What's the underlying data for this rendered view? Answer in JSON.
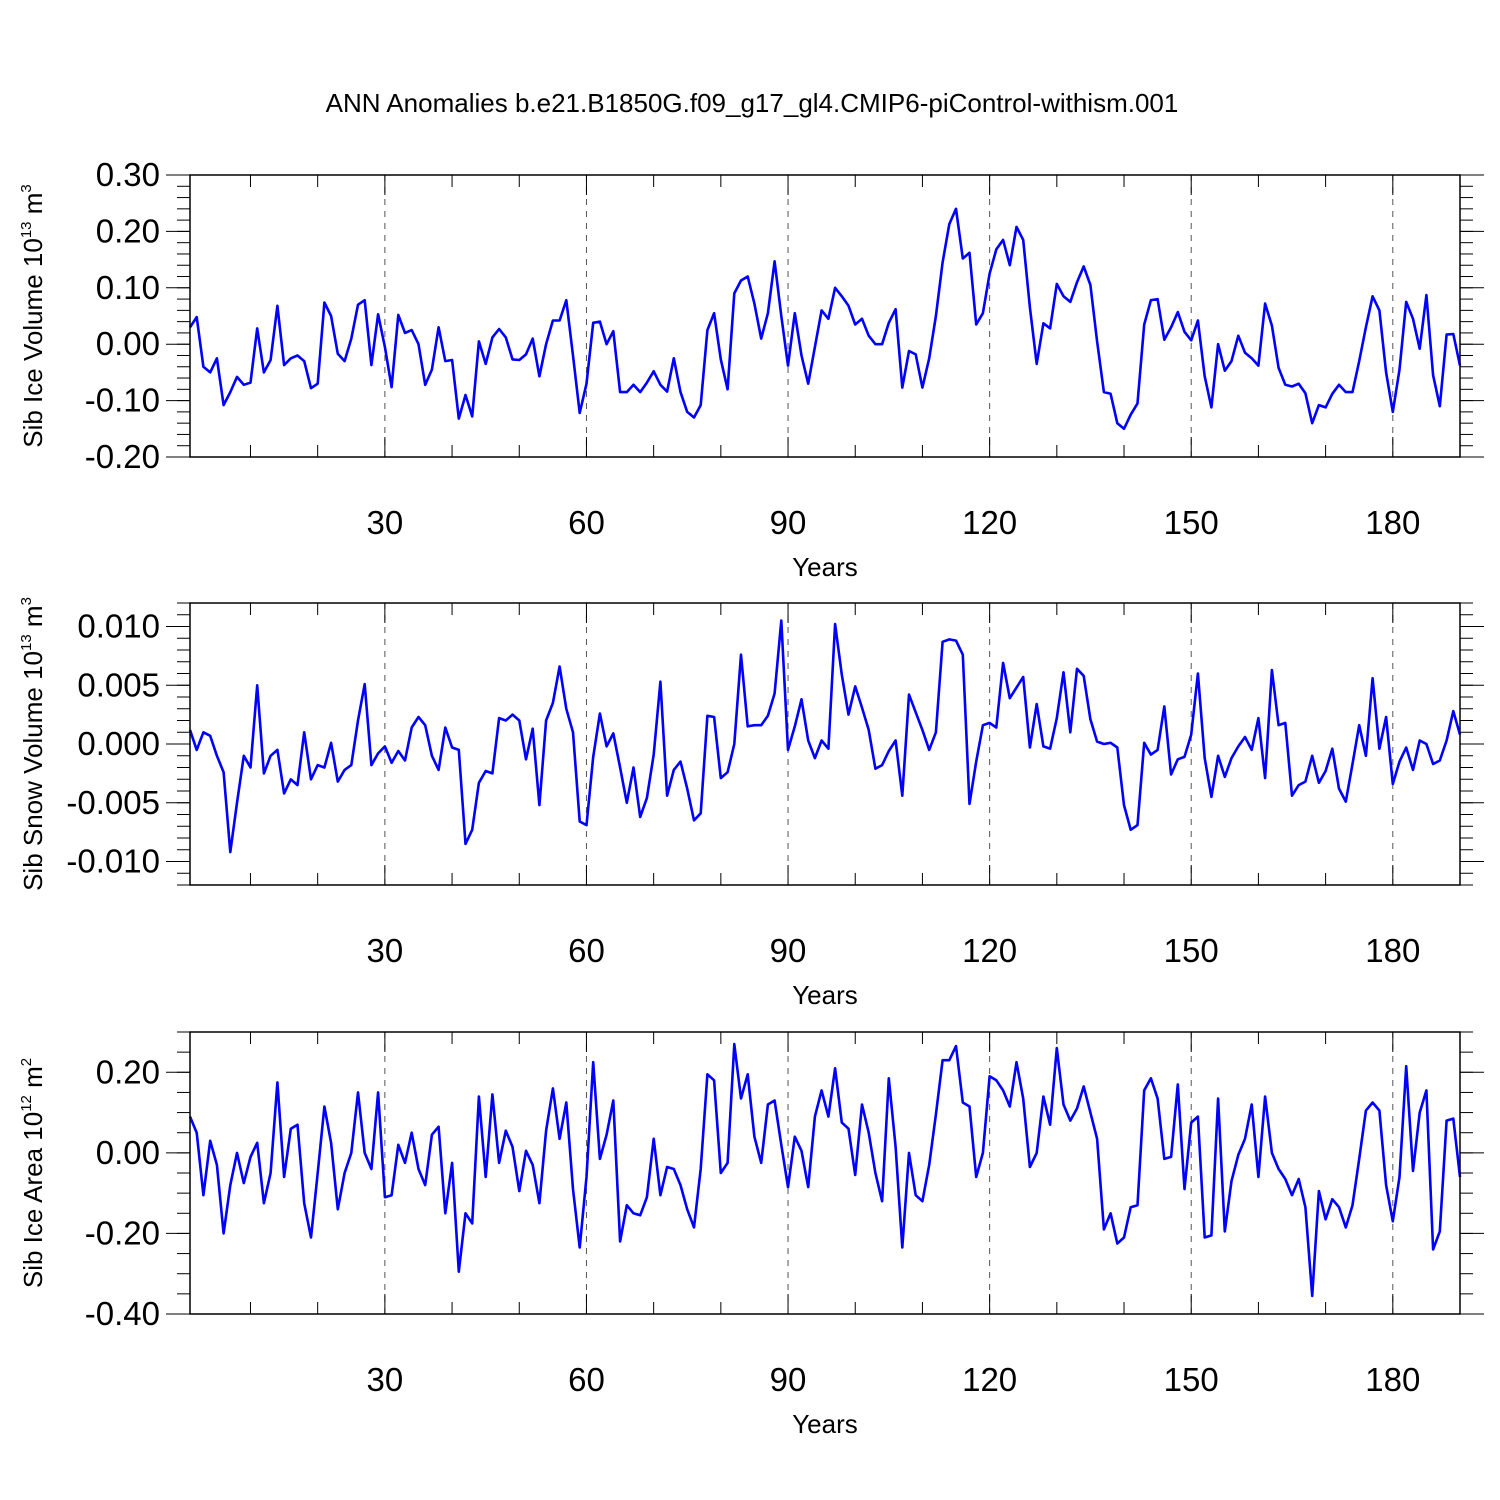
{
  "title": "ANN Anomalies b.e21.B1850G.f09_g17_gl4.CMIP6-piControl-withism.001",
  "chart_data": [
    {
      "type": "line",
      "title": "",
      "xlabel": "Years",
      "ylabel_main": "Sib Ice Volume 10",
      "ylabel_exp": "13",
      "ylabel_unit": " m",
      "ylabel_unit_exp": "3",
      "xlim": [
        1,
        190
      ],
      "ylim": [
        -0.2,
        0.3
      ],
      "xticks": [
        30,
        60,
        90,
        120,
        150,
        180
      ],
      "xtick_labels": [
        "30",
        "60",
        "90",
        "120",
        "150",
        "180"
      ],
      "yticks": [
        -0.2,
        -0.1,
        0.0,
        0.1,
        0.2,
        0.3
      ],
      "ytick_labels": [
        "-0.20",
        "-0.10",
        "0.00",
        "0.10",
        "0.20",
        "0.30"
      ],
      "yminor_step": 0.02,
      "grid": "vertical dashed at major x ticks",
      "series": [
        {
          "name": "Sib Ice Volume",
          "color": "#0000ff",
          "x_start": 1,
          "values": [
            0.03,
            0.048,
            -0.04,
            -0.05,
            -0.025,
            -0.108,
            -0.085,
            -0.058,
            -0.072,
            -0.068,
            0.028,
            -0.05,
            -0.028,
            0.068,
            -0.037,
            -0.025,
            -0.02,
            -0.03,
            -0.078,
            -0.07,
            0.074,
            0.05,
            -0.017,
            -0.03,
            0.01,
            0.07,
            0.078,
            -0.037,
            0.053,
            -0.005,
            -0.076,
            0.052,
            0.02,
            0.025,
            0.0,
            -0.072,
            -0.045,
            0.03,
            -0.03,
            -0.028,
            -0.132,
            -0.09,
            -0.128,
            0.005,
            -0.035,
            0.012,
            0.027,
            0.012,
            -0.027,
            -0.028,
            -0.018,
            0.01,
            -0.057,
            0.0,
            0.042,
            0.042,
            0.078,
            -0.02,
            -0.122,
            -0.07,
            0.038,
            0.04,
            0.0,
            0.023,
            -0.085,
            -0.085,
            -0.072,
            -0.085,
            -0.068,
            -0.048,
            -0.072,
            -0.084,
            -0.025,
            -0.085,
            -0.12,
            -0.13,
            -0.108,
            0.025,
            0.055,
            -0.027,
            -0.08,
            0.09,
            0.113,
            0.12,
            0.072,
            0.01,
            0.055,
            0.147,
            0.05,
            -0.038,
            0.055,
            -0.02,
            -0.07,
            -0.005,
            0.06,
            0.045,
            0.1,
            0.085,
            0.068,
            0.035,
            0.045,
            0.015,
            0.0,
            0.0,
            0.038,
            0.062,
            -0.077,
            -0.012,
            -0.018,
            -0.077,
            -0.025,
            0.05,
            0.145,
            0.213,
            0.24,
            0.152,
            0.162,
            0.035,
            0.055,
            0.125,
            0.168,
            0.185,
            0.14,
            0.208,
            0.185,
            0.065,
            -0.035,
            0.037,
            0.028,
            0.107,
            0.085,
            0.075,
            0.11,
            0.138,
            0.105,
            0.005,
            -0.085,
            -0.088,
            -0.14,
            -0.15,
            -0.125,
            -0.105,
            0.035,
            0.078,
            0.08,
            0.008,
            0.03,
            0.057,
            0.022,
            0.007,
            0.042,
            -0.057,
            -0.112,
            0.0,
            -0.047,
            -0.03,
            0.015,
            -0.015,
            -0.025,
            -0.038,
            0.072,
            0.033,
            -0.042,
            -0.072,
            -0.075,
            -0.07,
            -0.087,
            -0.14,
            -0.108,
            -0.112,
            -0.088,
            -0.072,
            -0.085,
            -0.085,
            -0.03,
            0.03,
            0.085,
            0.06,
            -0.05,
            -0.12,
            -0.045,
            0.075,
            0.045,
            -0.008,
            0.087,
            -0.055,
            -0.11,
            0.017,
            0.018,
            -0.038
          ]
        }
      ]
    },
    {
      "type": "line",
      "title": "",
      "xlabel": "Years",
      "ylabel_main": "Sib Snow Volume 10",
      "ylabel_exp": "13",
      "ylabel_unit": " m",
      "ylabel_unit_exp": "3",
      "xlim": [
        1,
        190
      ],
      "ylim": [
        -0.012,
        0.012
      ],
      "xticks": [
        30,
        60,
        90,
        120,
        150,
        180
      ],
      "xtick_labels": [
        "30",
        "60",
        "90",
        "120",
        "150",
        "180"
      ],
      "yticks": [
        -0.01,
        -0.005,
        0.0,
        0.005,
        0.01
      ],
      "ytick_labels": [
        "-0.010",
        "-0.005",
        "0.000",
        "0.005",
        "0.010"
      ],
      "yminor_step": 0.001,
      "grid": "vertical dashed at major x ticks",
      "series": [
        {
          "name": "Sib Snow Volume",
          "color": "#0000ff",
          "x_start": 1,
          "values": [
            0.0012,
            -0.0005,
            0.001,
            0.0007,
            -0.001,
            -0.0024,
            -0.0092,
            -0.005,
            -0.001,
            -0.002,
            0.005,
            -0.0025,
            -0.001,
            -0.0005,
            -0.0042,
            -0.003,
            -0.0035,
            0.001,
            -0.003,
            -0.0018,
            -0.002,
            0.0001,
            -0.0032,
            -0.0022,
            -0.0018,
            0.002,
            0.0051,
            -0.0018,
            -0.0008,
            -0.0002,
            -0.0016,
            -0.0006,
            -0.0014,
            0.0014,
            0.0023,
            0.0016,
            -0.001,
            -0.0022,
            0.0014,
            -0.0003,
            -0.0005,
            -0.0085,
            -0.0073,
            -0.0033,
            -0.0023,
            -0.0025,
            0.0022,
            0.002,
            0.0025,
            0.002,
            -0.0013,
            0.0013,
            -0.0052,
            0.002,
            0.0035,
            0.0066,
            0.003,
            0.001,
            -0.0066,
            -0.0069,
            -0.0011,
            0.0026,
            -0.0002,
            0.0009,
            -0.002,
            -0.005,
            -0.002,
            -0.0062,
            -0.0046,
            -0.0009,
            0.0053,
            -0.0044,
            -0.0022,
            -0.0015,
            -0.0038,
            -0.0065,
            -0.0059,
            0.0024,
            0.0023,
            -0.0029,
            -0.0024,
            0.0,
            0.0076,
            0.0015,
            0.0016,
            0.0016,
            0.0024,
            0.0043,
            0.0105,
            -0.0005,
            0.0015,
            0.0038,
            0.0003,
            -0.0012,
            0.0003,
            -0.0004,
            0.0102,
            0.0059,
            0.0025,
            0.0049,
            0.0031,
            0.0012,
            -0.0021,
            -0.0018,
            -0.0006,
            0.0003,
            -0.0044,
            0.0042,
            0.0027,
            0.0012,
            -0.0005,
            0.001,
            0.0087,
            0.0089,
            0.0088,
            0.0076,
            -0.0051,
            -0.0015,
            0.0016,
            0.0018,
            0.0014,
            0.0069,
            0.0039,
            0.0048,
            0.0057,
            -0.0003,
            0.0034,
            -0.0002,
            -0.0004,
            0.0022,
            0.0061,
            0.001,
            0.0064,
            0.0058,
            0.0021,
            0.0002,
            0.0,
            0.0001,
            -0.0003,
            -0.0052,
            -0.0073,
            -0.0069,
            0.0001,
            -0.0009,
            -0.0005,
            0.0032,
            -0.0026,
            -0.0013,
            -0.0011,
            0.0008,
            0.006,
            -0.0012,
            -0.0045,
            -0.001,
            -0.0028,
            -0.0012,
            -0.0002,
            0.0006,
            -0.0005,
            0.0022,
            -0.0029,
            0.0063,
            0.0016,
            0.0018,
            -0.0044,
            -0.0035,
            -0.0032,
            -0.001,
            -0.0033,
            -0.0023,
            -0.0004,
            -0.0038,
            -0.0049,
            -0.0017,
            0.0016,
            -0.001,
            0.0056,
            -0.0004,
            0.0023,
            -0.0034,
            -0.0015,
            -0.0003,
            -0.0022,
            0.0003,
            0.0,
            -0.0017,
            -0.0014,
            0.0003,
            0.0028,
            0.0008
          ]
        }
      ]
    },
    {
      "type": "line",
      "title": "",
      "xlabel": "Years",
      "ylabel_main": "Sib Ice Area 10",
      "ylabel_exp": "12",
      "ylabel_unit": " m",
      "ylabel_unit_exp": "2",
      "xlim": [
        1,
        190
      ],
      "ylim": [
        -0.4,
        0.3
      ],
      "xticks": [
        30,
        60,
        90,
        120,
        150,
        180
      ],
      "xtick_labels": [
        "30",
        "60",
        "90",
        "120",
        "150",
        "180"
      ],
      "yticks": [
        -0.4,
        -0.2,
        0.0,
        0.2
      ],
      "ytick_labels": [
        "-0.40",
        "-0.20",
        "0.00",
        "0.20"
      ],
      "yminor_step": 0.05,
      "grid": "vertical dashed at major x ticks",
      "series": [
        {
          "name": "Sib Ice Area",
          "color": "#0000ff",
          "x_start": 1,
          "values": [
            0.09,
            0.05,
            -0.105,
            0.03,
            -0.03,
            -0.2,
            -0.08,
            0.0,
            -0.075,
            -0.01,
            0.025,
            -0.125,
            -0.05,
            0.175,
            -0.06,
            0.06,
            0.07,
            -0.125,
            -0.21,
            -0.05,
            0.115,
            0.025,
            -0.14,
            -0.05,
            0.0,
            0.15,
            0.0,
            -0.04,
            0.15,
            -0.11,
            -0.105,
            0.02,
            -0.025,
            0.05,
            -0.04,
            -0.08,
            0.045,
            0.065,
            -0.15,
            -0.025,
            -0.295,
            -0.15,
            -0.175,
            0.14,
            -0.06,
            0.145,
            -0.025,
            0.055,
            0.015,
            -0.095,
            0.005,
            -0.03,
            -0.125,
            0.055,
            0.16,
            0.035,
            0.125,
            -0.09,
            -0.235,
            -0.06,
            0.225,
            -0.015,
            0.045,
            0.13,
            -0.22,
            -0.13,
            -0.15,
            -0.155,
            -0.11,
            0.035,
            -0.105,
            -0.035,
            -0.04,
            -0.08,
            -0.14,
            -0.185,
            -0.04,
            0.195,
            0.18,
            -0.05,
            -0.025,
            0.27,
            0.135,
            0.195,
            0.04,
            -0.025,
            0.12,
            0.13,
            0.02,
            -0.085,
            0.04,
            0.005,
            -0.085,
            0.09,
            0.155,
            0.09,
            0.21,
            0.075,
            0.06,
            -0.055,
            0.12,
            0.05,
            -0.05,
            -0.12,
            0.185,
            0.015,
            -0.235,
            0.0,
            -0.105,
            -0.12,
            -0.03,
            0.095,
            0.23,
            0.23,
            0.265,
            0.125,
            0.115,
            -0.06,
            0.0,
            0.19,
            0.18,
            0.155,
            0.115,
            0.225,
            0.135,
            -0.035,
            0.0,
            0.14,
            0.07,
            0.26,
            0.12,
            0.08,
            0.11,
            0.165,
            0.1,
            0.035,
            -0.19,
            -0.15,
            -0.225,
            -0.21,
            -0.135,
            -0.13,
            0.155,
            0.185,
            0.135,
            -0.015,
            -0.01,
            0.17,
            -0.09,
            0.075,
            0.09,
            -0.21,
            -0.205,
            0.135,
            -0.195,
            -0.07,
            -0.005,
            0.035,
            0.12,
            -0.06,
            0.14,
            0.0,
            -0.04,
            -0.065,
            -0.105,
            -0.065,
            -0.135,
            -0.355,
            -0.095,
            -0.165,
            -0.115,
            -0.135,
            -0.185,
            -0.13,
            -0.015,
            0.105,
            0.125,
            0.105,
            -0.08,
            -0.17,
            -0.06,
            0.215,
            -0.045,
            0.1,
            0.155,
            -0.24,
            -0.195,
            0.08,
            0.085,
            -0.06
          ]
        }
      ]
    }
  ]
}
